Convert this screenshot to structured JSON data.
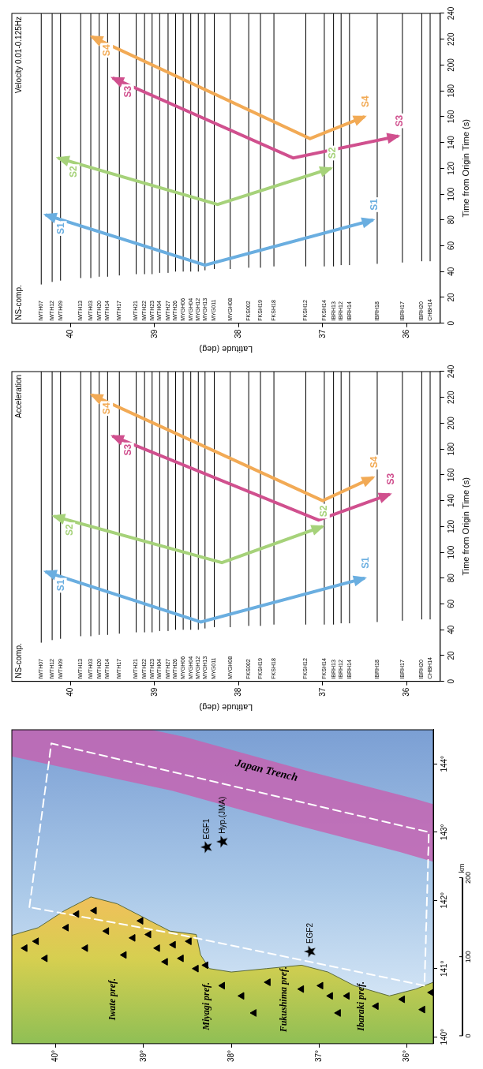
{
  "chart_data": [
    {
      "type": "map",
      "xlim": [
        139.9,
        144.5
      ],
      "xticks": [
        {
          "value": 140,
          "label": "140°"
        },
        {
          "value": 141,
          "label": "141°"
        },
        {
          "value": 142,
          "label": "142°"
        },
        {
          "value": 143,
          "label": "143°"
        },
        {
          "value": 144,
          "label": "144°"
        }
      ],
      "ylim": [
        35.7,
        40.5
      ],
      "yticks": [
        {
          "value": 36,
          "label": "36°"
        },
        {
          "value": 37,
          "label": "37°"
        },
        {
          "value": 38,
          "label": "38°"
        },
        {
          "value": 39,
          "label": "39°"
        },
        {
          "value": 40,
          "label": "40°"
        }
      ],
      "grid": false,
      "color": "#000000",
      "marker": "triangle",
      "stations": [
        [
          141.3,
          40.35
        ],
        [
          141.4,
          40.22
        ],
        [
          141.15,
          40.12
        ],
        [
          141.6,
          39.88
        ],
        [
          141.8,
          39.76
        ],
        [
          141.3,
          39.66
        ],
        [
          141.85,
          39.56
        ],
        [
          141.55,
          39.42
        ],
        [
          141.2,
          39.22
        ],
        [
          141.45,
          39.12
        ],
        [
          141.7,
          39.03
        ],
        [
          141.5,
          38.94
        ],
        [
          141.3,
          38.84
        ],
        [
          141.1,
          38.75
        ],
        [
          141.35,
          38.66
        ],
        [
          141.15,
          38.57
        ],
        [
          141.4,
          38.48
        ],
        [
          141.0,
          38.4
        ],
        [
          141.05,
          38.29
        ],
        [
          140.75,
          38.1
        ],
        [
          140.6,
          37.88
        ],
        [
          140.35,
          37.74
        ],
        [
          140.8,
          37.58
        ],
        [
          140.7,
          37.2
        ],
        [
          140.75,
          36.98
        ],
        [
          140.6,
          36.87
        ],
        [
          140.35,
          36.78
        ],
        [
          140.6,
          36.68
        ],
        [
          140.45,
          36.35
        ],
        [
          140.55,
          36.05
        ],
        [
          140.4,
          35.82
        ],
        [
          140.65,
          35.72
        ]
      ],
      "sources": [
        {
          "name": "EGF1",
          "lon": 142.78,
          "lat": 38.28,
          "marker": "star"
        },
        {
          "name": "Hyp.(JMA)",
          "lon": 142.86,
          "lat": 38.1,
          "marker": "star"
        },
        {
          "name": "EGF2",
          "lon": 141.25,
          "lat": 37.1,
          "marker": "star"
        }
      ],
      "coastline": [
        [
          141.45,
          40.6
        ],
        [
          141.6,
          40.2
        ],
        [
          141.85,
          39.9
        ],
        [
          142.05,
          39.6
        ],
        [
          141.95,
          39.3
        ],
        [
          141.75,
          39.0
        ],
        [
          141.55,
          38.7
        ],
        [
          141.5,
          38.4
        ],
        [
          141.2,
          38.35
        ],
        [
          141.0,
          38.25
        ],
        [
          140.95,
          38.0
        ],
        [
          141.0,
          37.6
        ],
        [
          141.05,
          37.2
        ],
        [
          140.95,
          36.9
        ],
        [
          140.75,
          36.6
        ],
        [
          140.6,
          36.2
        ],
        [
          140.7,
          35.9
        ],
        [
          140.85,
          35.6
        ]
      ],
      "survey_area": [
        [
          141.9,
          40.3
        ],
        [
          144.3,
          40.05
        ],
        [
          143.0,
          35.75
        ],
        [
          140.75,
          35.8
        ],
        [
          141.5,
          38.6
        ],
        [
          141.9,
          40.3
        ]
      ],
      "trench": {
        "text": "Japan Trench",
        "x": 143.9,
        "y": 37.6,
        "path": [
          [
            144.55,
            40.6
          ],
          [
            144.0,
            38.6
          ],
          [
            143.5,
            37.2
          ],
          [
            143.1,
            36.0
          ],
          [
            142.95,
            35.6
          ]
        ]
      },
      "annotations": [
        {
          "text": "Iwate pref.",
          "x": 140.55,
          "y": 39.35
        },
        {
          "text": "Miyagi pref.",
          "x": 140.45,
          "y": 38.28
        },
        {
          "text": "Fukushima pref.",
          "x": 140.55,
          "y": 37.4
        },
        {
          "text": "Ibaraki pref.",
          "x": 140.45,
          "y": 36.52
        }
      ],
      "scale_bar": {
        "ticks": [
          0,
          100,
          200
        ],
        "unit": "km"
      }
    },
    {
      "type": "record_section",
      "title": "Acceleration",
      "component": "NS-comp.",
      "x_label": "Time from Origin Time (s)",
      "y_label": "Latitude (deg)",
      "xlim": [
        0,
        240
      ],
      "xticks": [
        0,
        20,
        40,
        60,
        80,
        100,
        120,
        140,
        160,
        180,
        200,
        220,
        240
      ],
      "ylim": [
        35.6,
        40.7
      ],
      "yticks": [
        36,
        37,
        38,
        39,
        40
      ],
      "grid": false,
      "color": "#000000",
      "series": [
        {
          "name": "IWTH07",
          "y": 40.35,
          "start": 30
        },
        {
          "name": "IWTH12",
          "y": 40.22,
          "start": 32
        },
        {
          "name": "IWTH09",
          "y": 40.12,
          "start": 33
        },
        {
          "name": "IWTH13",
          "y": 39.88,
          "start": 35
        },
        {
          "name": "IWTH03",
          "y": 39.76,
          "start": 35
        },
        {
          "name": "IWTH20",
          "y": 39.66,
          "start": 36
        },
        {
          "name": "IWTH14",
          "y": 39.56,
          "start": 36
        },
        {
          "name": "IWTH17",
          "y": 39.42,
          "start": 37
        },
        {
          "name": "IWTH21",
          "y": 39.22,
          "start": 38
        },
        {
          "name": "IWTH22",
          "y": 39.12,
          "start": 38
        },
        {
          "name": "IWTH23",
          "y": 39.03,
          "start": 38
        },
        {
          "name": "IWTH04",
          "y": 38.94,
          "start": 39
        },
        {
          "name": "IWTH27",
          "y": 38.84,
          "start": 39
        },
        {
          "name": "IWTH26",
          "y": 38.75,
          "start": 40
        },
        {
          "name": "MYGH06",
          "y": 38.66,
          "start": 40
        },
        {
          "name": "MYGH04",
          "y": 38.57,
          "start": 40
        },
        {
          "name": "MYGH12",
          "y": 38.48,
          "start": 40
        },
        {
          "name": "MYGH13",
          "y": 38.4,
          "start": 41
        },
        {
          "name": "MYG011",
          "y": 38.29,
          "start": 42
        },
        {
          "name": "MYGH08",
          "y": 38.1,
          "start": 42
        },
        {
          "name": "FKS002",
          "y": 37.88,
          "start": 43
        },
        {
          "name": "FKSH19",
          "y": 37.74,
          "start": 43
        },
        {
          "name": "FKSH18",
          "y": 37.58,
          "start": 44
        },
        {
          "name": "FKSH12",
          "y": 37.2,
          "start": 44
        },
        {
          "name": "FKSH14",
          "y": 36.98,
          "start": 44
        },
        {
          "name": "IBRH13",
          "y": 36.87,
          "start": 44
        },
        {
          "name": "IBRH12",
          "y": 36.78,
          "start": 45
        },
        {
          "name": "IBRH14",
          "y": 36.68,
          "start": 45
        },
        {
          "name": "IBRH18",
          "y": 36.35,
          "start": 46
        },
        {
          "name": "IBRH17",
          "y": 36.05,
          "start": 47
        },
        {
          "name": "IBRH20",
          "y": 35.82,
          "start": 48
        },
        {
          "name": "CHBH14",
          "y": 35.72,
          "start": 48
        }
      ],
      "arrows": [
        {
          "name": "S1",
          "color": "#6aaee0",
          "points": [
            [
              85,
              40.3
            ],
            [
              46,
              38.45
            ],
            [
              80,
              36.5
            ]
          ]
        },
        {
          "name": "S2",
          "color": "#a6d27a",
          "points": [
            [
              128,
              40.2
            ],
            [
              92,
              38.2
            ],
            [
              120,
              37.0
            ]
          ]
        },
        {
          "name": "S3",
          "color": "#d0508e",
          "points": [
            [
              190,
              39.5
            ],
            [
              125,
              37.05
            ],
            [
              145,
              36.2
            ]
          ]
        },
        {
          "name": "S4",
          "color": "#f2aa55",
          "points": [
            [
              222,
              39.75
            ],
            [
              140,
              37.0
            ],
            [
              158,
              36.4
            ]
          ]
        }
      ]
    },
    {
      "type": "record_section",
      "title": "Velocity 0.01-0.125Hz",
      "component": "NS-comp.",
      "x_label": "Time from Origin Time (s)",
      "y_label": "Latitude (deg)",
      "xlim": [
        0,
        240
      ],
      "xticks": [
        0,
        20,
        40,
        60,
        80,
        100,
        120,
        140,
        160,
        180,
        200,
        220,
        240
      ],
      "ylim": [
        35.6,
        40.7
      ],
      "yticks": [
        36,
        37,
        38,
        39,
        40
      ],
      "grid": false,
      "color": "#000000",
      "series": [
        {
          "name": "IWTH07",
          "y": 40.35,
          "start": 30
        },
        {
          "name": "IWTH12",
          "y": 40.22,
          "start": 32
        },
        {
          "name": "IWTH09",
          "y": 40.12,
          "start": 33
        },
        {
          "name": "IWTH13",
          "y": 39.88,
          "start": 35
        },
        {
          "name": "IWTH03",
          "y": 39.76,
          "start": 35
        },
        {
          "name": "IWTH20",
          "y": 39.66,
          "start": 36
        },
        {
          "name": "IWTH14",
          "y": 39.56,
          "start": 36
        },
        {
          "name": "IWTH17",
          "y": 39.42,
          "start": 37
        },
        {
          "name": "IWTH21",
          "y": 39.22,
          "start": 38
        },
        {
          "name": "IWTH22",
          "y": 39.12,
          "start": 38
        },
        {
          "name": "IWTH23",
          "y": 39.03,
          "start": 38
        },
        {
          "name": "IWTH04",
          "y": 38.94,
          "start": 39
        },
        {
          "name": "IWTH27",
          "y": 38.84,
          "start": 39
        },
        {
          "name": "IWTH26",
          "y": 38.75,
          "start": 40
        },
        {
          "name": "MYGH06",
          "y": 38.66,
          "start": 40
        },
        {
          "name": "MYGH04",
          "y": 38.57,
          "start": 40
        },
        {
          "name": "MYGH12",
          "y": 38.48,
          "start": 40
        },
        {
          "name": "MYGH13",
          "y": 38.4,
          "start": 41
        },
        {
          "name": "MYG011",
          "y": 38.29,
          "start": 42
        },
        {
          "name": "MYGH08",
          "y": 38.1,
          "start": 42
        },
        {
          "name": "FKS002",
          "y": 37.88,
          "start": 43
        },
        {
          "name": "FKSH19",
          "y": 37.74,
          "start": 43
        },
        {
          "name": "FKSH18",
          "y": 37.58,
          "start": 44
        },
        {
          "name": "FKSH12",
          "y": 37.2,
          "start": 44
        },
        {
          "name": "FKSH14",
          "y": 36.98,
          "start": 44
        },
        {
          "name": "IBRH13",
          "y": 36.87,
          "start": 44
        },
        {
          "name": "IBRH12",
          "y": 36.78,
          "start": 45
        },
        {
          "name": "IBRH14",
          "y": 36.68,
          "start": 45
        },
        {
          "name": "IBRH18",
          "y": 36.35,
          "start": 46
        },
        {
          "name": "IBRH17",
          "y": 36.05,
          "start": 47
        },
        {
          "name": "IBRH20",
          "y": 35.82,
          "start": 48
        },
        {
          "name": "CHBH14",
          "y": 35.72,
          "start": 48
        }
      ],
      "arrows": [
        {
          "name": "S1",
          "color": "#6aaee0",
          "points": [
            [
              84,
              40.3
            ],
            [
              45,
              38.4
            ],
            [
              80,
              36.4
            ]
          ]
        },
        {
          "name": "S2",
          "color": "#a6d27a",
          "points": [
            [
              128,
              40.15
            ],
            [
              92,
              38.25
            ],
            [
              120,
              36.9
            ]
          ]
        },
        {
          "name": "S3",
          "color": "#d0508e",
          "points": [
            [
              190,
              39.5
            ],
            [
              128,
              37.35
            ],
            [
              145,
              36.1
            ]
          ]
        },
        {
          "name": "S4",
          "color": "#f2aa55",
          "points": [
            [
              222,
              39.75
            ],
            [
              143,
              37.15
            ],
            [
              160,
              36.5
            ]
          ]
        }
      ]
    }
  ]
}
